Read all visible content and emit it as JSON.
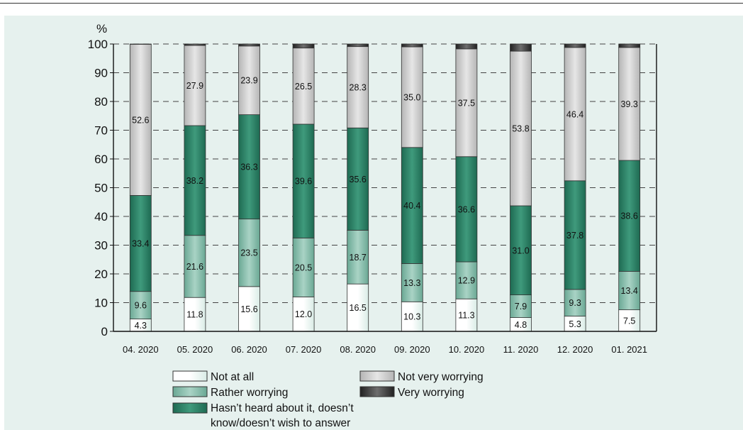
{
  "chart_data": {
    "type": "bar",
    "stacked": true,
    "ylabel": "%",
    "ylim": [
      0,
      100
    ],
    "yticks": [
      0,
      10,
      20,
      30,
      40,
      50,
      60,
      70,
      80,
      90,
      100
    ],
    "grid": "horizontal dashed",
    "legend_position": "bottom",
    "categories": [
      "04. 2020",
      "05. 2020",
      "06. 2020",
      "07. 2020",
      "08. 2020",
      "09. 2020",
      "10. 2020",
      "11. 2020",
      "12. 2020",
      "01. 2021"
    ],
    "series": [
      {
        "name": "Not at all",
        "color": "#ffffff",
        "values": [
          4.3,
          11.8,
          15.6,
          12.0,
          16.5,
          10.3,
          11.3,
          4.8,
          5.3,
          7.5
        ],
        "labels": [
          "4.3",
          "11.8",
          "15.6",
          "12.0",
          "16.5",
          "10.3",
          "11.3",
          "4.8",
          "5.3",
          "7.5"
        ]
      },
      {
        "name": "Rather worrying",
        "color": "#7fb7a6",
        "values": [
          9.6,
          21.6,
          23.5,
          20.5,
          18.7,
          13.3,
          12.9,
          7.9,
          9.3,
          13.4
        ],
        "labels": [
          "9.6",
          "21.6",
          "23.5",
          "20.5",
          "18.7",
          "13.3",
          "12.9",
          "7.9",
          "9.3",
          "13.4"
        ]
      },
      {
        "name": "Hasn’t heard about it, doesn’t know/doesn’t wish to answer",
        "color": "#2f7f66",
        "values": [
          33.4,
          38.2,
          36.3,
          39.6,
          35.6,
          40.4,
          36.6,
          31.0,
          37.8,
          38.6
        ],
        "labels": [
          "33.4",
          "38.2",
          "36.3",
          "39.6",
          "35.6",
          "40.4",
          "36.6",
          "31.0",
          "37.8",
          "38.6"
        ]
      },
      {
        "name": "Not very worrying",
        "color": "#d4d4d4",
        "values": [
          52.6,
          27.9,
          23.9,
          26.5,
          28.3,
          35.0,
          37.5,
          53.8,
          46.4,
          39.3
        ],
        "labels": [
          "52.6",
          "27.9",
          "23.9",
          "26.5",
          "28.3",
          "35.0",
          "37.5",
          "53.8",
          "46.4",
          "39.3"
        ]
      },
      {
        "name": "Very worrying",
        "color": "#3a3a3a",
        "values": [
          0.1,
          0.5,
          0.7,
          1.4,
          0.9,
          1.0,
          1.7,
          2.5,
          1.2,
          1.2
        ],
        "labels": []
      }
    ]
  },
  "legend": {
    "not_at_all": "Not at all",
    "rather_worrying": "Rather worrying",
    "hasnt_heard_line1": "Hasn’t heard about it, doesn’t",
    "hasnt_heard_line2": "know/doesn’t wish to answer",
    "not_very_worrying": "Not very worrying",
    "very_worrying": "Very worrying"
  }
}
